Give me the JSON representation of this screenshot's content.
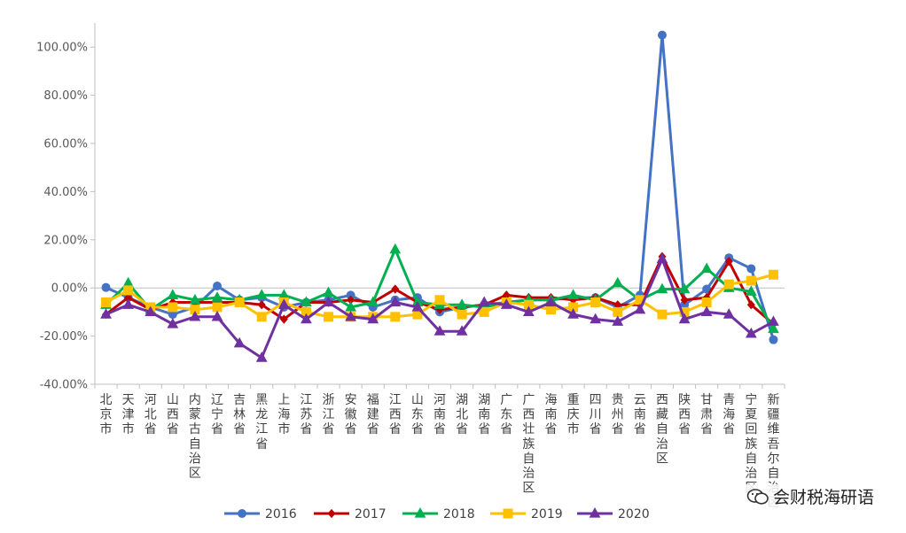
{
  "chart_data": {
    "type": "line",
    "title": "",
    "xlabel": "",
    "ylabel": "",
    "ylim": [
      -40,
      110
    ],
    "yticks": [
      -40,
      -20,
      0,
      20,
      40,
      60,
      80,
      100
    ],
    "ytick_labels": [
      "-40.00%",
      "-20.00%",
      "0.00%",
      "20.00%",
      "40.00%",
      "60.00%",
      "80.00%",
      "100.00%"
    ],
    "legend_position": "bottom",
    "grid": false,
    "categories": [
      "北京市",
      "天津市",
      "河北省",
      "山西省",
      "内蒙古自治区",
      "辽宁省",
      "吉林省",
      "黑龙江省",
      "上海市",
      "江苏省",
      "浙江省",
      "安徽省",
      "福建省",
      "江西省",
      "山东省",
      "河南省",
      "湖北省",
      "湖南省",
      "广东省",
      "广西壮族自治区",
      "海南省",
      "重庆市",
      "四川省",
      "贵州省",
      "云南省",
      "西藏自治区",
      "陕西省",
      "甘肃省",
      "青海省",
      "宁夏回族自治区",
      "新疆维吾尔自治区"
    ],
    "series": [
      {
        "name": "2016",
        "color": "#4472C4",
        "marker": "circle",
        "values": [
          0.2,
          -4,
          -8,
          -11,
          -8,
          0.8,
          -5,
          -4,
          -8,
          -6,
          -5,
          -3,
          -8,
          -5,
          -4,
          -10,
          -8,
          -7,
          -6,
          -5,
          -5,
          -4,
          -4,
          -8,
          -3,
          105,
          -7,
          -0.5,
          12.5,
          8,
          -21.5
        ]
      },
      {
        "name": "2017",
        "color": "#C00000",
        "marker": "diamond",
        "values": [
          -11,
          -4,
          -9,
          -6,
          -6,
          -6,
          -6,
          -7,
          -13,
          -6,
          -6,
          -5,
          -6,
          -0.5,
          -6,
          -9,
          -8,
          -7,
          -3,
          -4,
          -4,
          -5,
          -4,
          -7,
          -7,
          13,
          -5,
          -4,
          11,
          -7,
          -15
        ]
      },
      {
        "name": "2018",
        "color": "#00B050",
        "marker": "triangle",
        "values": [
          -7,
          2,
          -9,
          -3,
          -5,
          -4,
          -5,
          -3,
          -3,
          -6,
          -2,
          -8,
          -6,
          16,
          -6,
          -7,
          -7,
          -8,
          -6,
          -5,
          -5,
          -3,
          -5,
          2,
          -5,
          -0.5,
          -0.5,
          8,
          0,
          -1.5,
          -17
        ]
      },
      {
        "name": "2019",
        "color": "#FFC000",
        "marker": "square",
        "values": [
          -6,
          -1,
          -8,
          -8,
          -9,
          -8,
          -6,
          -12,
          -6,
          -10,
          -12,
          -12,
          -12,
          -12,
          -11,
          -5,
          -11,
          -10,
          -6,
          -7,
          -9,
          -8,
          -6,
          -10,
          -5,
          -11,
          -10,
          -6,
          1.5,
          3,
          5.5
        ]
      },
      {
        "name": "2020",
        "color": "#7030A0",
        "marker": "triangle",
        "values": [
          -11,
          -7,
          -10,
          -15,
          -12,
          -12,
          -23,
          -29,
          -7,
          -13,
          -6,
          -12,
          -13,
          -6,
          -8,
          -18,
          -18,
          -6,
          -7,
          -10,
          -6,
          -11,
          -13,
          -14,
          -9,
          12,
          -13,
          -10,
          -11,
          -19,
          -14
        ]
      }
    ]
  },
  "watermark": {
    "text": "会财税海研语",
    "icon": "wechat-icon"
  }
}
